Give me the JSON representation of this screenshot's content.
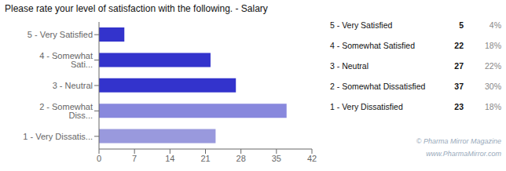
{
  "chart_data": {
    "type": "bar",
    "orientation": "horizontal",
    "title": "Please rate your level of satisfaction with the following. - Salary",
    "categories": [
      "5 - Very Satisfied",
      "4 - Somewhat Sati...",
      "3 - Neutral",
      "2 - Somewhat Diss...",
      "1 - Very Dissatis..."
    ],
    "values": [
      5,
      22,
      27,
      37,
      23
    ],
    "colors": [
      "#3333cc",
      "#3333cc",
      "#3333cc",
      "#8888dd",
      "#9999dd"
    ],
    "xlim": [
      0,
      42
    ],
    "xticks": [
      0,
      7,
      14,
      21,
      28,
      35,
      42
    ],
    "grid": false,
    "table": {
      "labels": [
        "5 - Very Satisfied",
        "4 - Somewhat Satisfied",
        "3 - Neutral",
        "2 - Somewhat Dissatisfied",
        "1 - Very Dissatisfied"
      ],
      "counts": [
        5,
        22,
        27,
        37,
        23
      ],
      "shares": [
        {
          "value": 4,
          "label": "4%"
        },
        {
          "value": 18,
          "label": "18%"
        },
        {
          "value": 22,
          "label": "22%"
        },
        {
          "value": 30,
          "label": "30%"
        },
        {
          "value": 18,
          "label": "18%"
        }
      ]
    },
    "annotations": [
      "© Pharma Mirror Magazine",
      "www.PharmaMirror.com"
    ]
  }
}
